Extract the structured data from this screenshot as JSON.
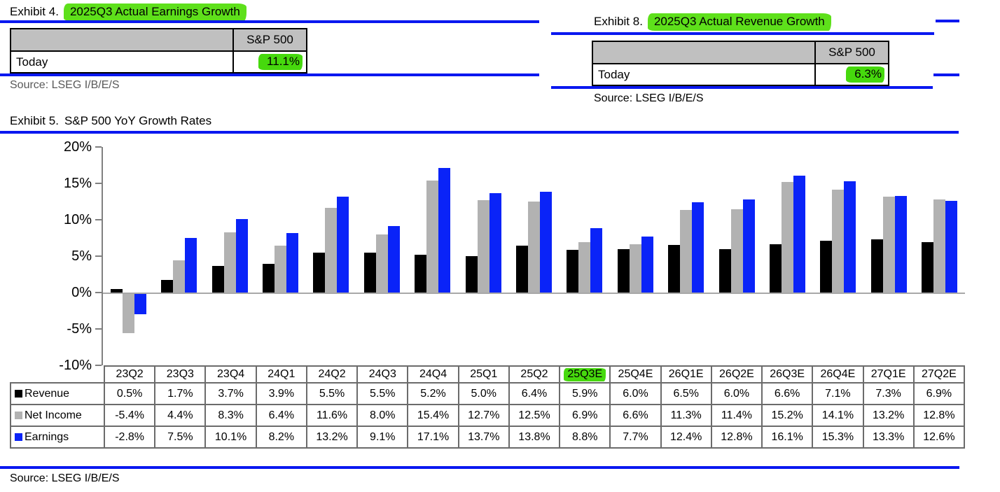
{
  "colors": {
    "rule_blue": "#0a18f0",
    "axis_gray": "#808080",
    "zero_line_gray": "#a8a8a8",
    "mini_table_header_bg": "#c0c0c0",
    "growth_table_border": "#6b6b6b",
    "highlight_title_green": "#5ee01b",
    "highlight_value_green": "#46d90d",
    "source_gray": "#595959",
    "revenue_black": "#000000",
    "net_income_gray": "#b2b2b2",
    "earnings_blue": "#0a23f8"
  },
  "exhibit4": {
    "label": "Exhibit 4.",
    "title": "2025Q3 Actual Earnings Growth",
    "col_header": "S&P 500",
    "row_label": "Today",
    "value": "11.1%",
    "source": "Source: LSEG I/B/E/S"
  },
  "exhibit8": {
    "label": "Exhibit 8.",
    "title": "2025Q3 Actual Revenue Growth",
    "col_header": "S&P 500",
    "row_label": "Today",
    "value": "6.3%",
    "source": "Source: LSEG I/B/E/S"
  },
  "exhibit5": {
    "label": "Exhibit 5.",
    "title": "S&P 500 YoY Growth Rates",
    "source": "Source: LSEG I/B/E/S"
  },
  "chart_data": {
    "type": "bar",
    "title": "S&P 500 YoY Growth Rates",
    "categories": [
      "23Q2",
      "23Q3",
      "23Q4",
      "24Q1",
      "24Q2",
      "24Q3",
      "24Q4",
      "25Q1",
      "25Q2",
      "25Q3E",
      "25Q4E",
      "26Q1E",
      "26Q2E",
      "26Q3E",
      "26Q4E",
      "27Q1E",
      "27Q2E"
    ],
    "highlighted_category": "25Q3E",
    "series": [
      {
        "name": "Revenue",
        "color": "#000000",
        "values": [
          0.5,
          1.7,
          3.7,
          3.9,
          5.5,
          5.5,
          5.2,
          5.0,
          6.4,
          5.9,
          6.0,
          6.5,
          6.0,
          6.6,
          7.1,
          7.3,
          6.9
        ]
      },
      {
        "name": "Net Income",
        "color": "#b2b2b2",
        "values": [
          -5.4,
          4.4,
          8.3,
          6.4,
          11.6,
          8.0,
          15.4,
          12.7,
          12.5,
          6.9,
          6.6,
          11.3,
          11.4,
          15.2,
          14.1,
          13.2,
          12.8
        ]
      },
      {
        "name": "Earnings",
        "color": "#0a23f8",
        "values": [
          -2.8,
          7.5,
          10.1,
          8.2,
          13.2,
          9.1,
          17.1,
          13.7,
          13.8,
          8.8,
          7.7,
          12.4,
          12.8,
          16.1,
          15.3,
          13.3,
          12.6
        ]
      }
    ],
    "ylim": [
      -10,
      20
    ],
    "yticks": [
      20,
      15,
      10,
      5,
      0,
      -5,
      -10
    ],
    "ytick_suffix": "%",
    "legend_position": "table-left",
    "grid": false,
    "value_suffix": "%"
  }
}
